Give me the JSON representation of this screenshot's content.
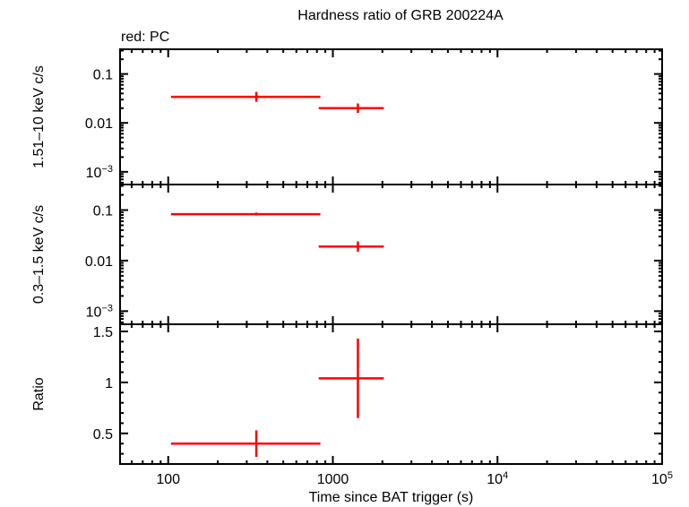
{
  "title": "Hardness ratio of GRB 200224A",
  "subtitle": "red: PC",
  "colors": {
    "series": "#ff0000",
    "axes": "#000000",
    "background": "#ffffff"
  },
  "chart_data": [
    {
      "type": "scatter",
      "panel": "top",
      "title": "Hardness ratio of GRB 200224A",
      "ylabel": "1.51–10 keV c/s",
      "xlabel": "",
      "xscale": "log",
      "yscale": "log",
      "xlim": [
        51,
        100000
      ],
      "ylim": [
        0.00055,
        0.32
      ],
      "yticks": [
        "0.1",
        "0.01",
        "10⁻³"
      ],
      "series": [
        {
          "name": "PC",
          "color": "#ff0000",
          "points": [
            {
              "x": 343,
              "xlo": 104,
              "xhi": 840,
              "y": 0.034,
              "ylo": 0.027,
              "yhi": 0.043
            },
            {
              "x": 1420,
              "xlo": 820,
              "xhi": 2040,
              "y": 0.02,
              "ylo": 0.016,
              "yhi": 0.025
            }
          ]
        }
      ]
    },
    {
      "type": "scatter",
      "panel": "middle",
      "ylabel": "0.3–1.5 keV c/s",
      "xscale": "log",
      "yscale": "log",
      "xlim": [
        51,
        100000
      ],
      "ylim": [
        0.00055,
        0.32
      ],
      "yticks": [
        "0.1",
        "0.01",
        "10⁻³"
      ],
      "series": [
        {
          "name": "PC",
          "color": "#ff0000",
          "points": [
            {
              "x": 343,
              "xlo": 104,
              "xhi": 840,
              "y": 0.083,
              "ylo": 0.078,
              "yhi": 0.089
            },
            {
              "x": 1420,
              "xlo": 820,
              "xhi": 2040,
              "y": 0.019,
              "ylo": 0.015,
              "yhi": 0.024
            }
          ]
        }
      ]
    },
    {
      "type": "scatter",
      "panel": "bottom",
      "ylabel": "Ratio",
      "xlabel": "Time since BAT trigger (s)",
      "xscale": "log",
      "yscale": "linear",
      "xlim": [
        51,
        100000
      ],
      "ylim": [
        0.2,
        1.57
      ],
      "yticks": [
        "0.5",
        "1",
        "1.5"
      ],
      "xticks": [
        "100",
        "1000",
        "10⁴",
        "10⁵"
      ],
      "series": [
        {
          "name": "PC",
          "color": "#ff0000",
          "points": [
            {
              "x": 343,
              "xlo": 104,
              "xhi": 840,
              "y": 0.4,
              "ylo": 0.27,
              "yhi": 0.53
            },
            {
              "x": 1420,
              "xlo": 820,
              "xhi": 2040,
              "y": 1.04,
              "ylo": 0.65,
              "yhi": 1.43
            }
          ]
        }
      ]
    }
  ]
}
